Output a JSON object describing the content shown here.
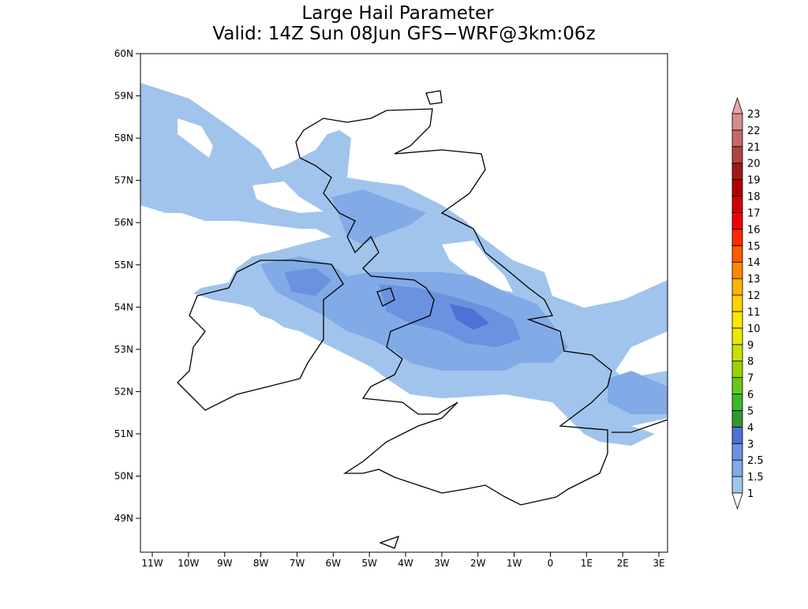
{
  "title": "Large Hail Parameter",
  "subtitle": "Valid: 14Z Sun 08Jun GFS−WRF@3km:06z",
  "map": {
    "lat_labels": [
      "60N",
      "59N",
      "58N",
      "57N",
      "56N",
      "55N",
      "54N",
      "53N",
      "52N",
      "51N",
      "50N",
      "49N"
    ],
    "lon_labels": [
      "11W",
      "10W",
      "9W",
      "8W",
      "7W",
      "6W",
      "5W",
      "4W",
      "3W",
      "2W",
      "1W",
      "0",
      "1E",
      "2E",
      "3E"
    ]
  },
  "legend": {
    "labels": [
      "1",
      "1.5",
      "2.5",
      "3",
      "4",
      "5",
      "6",
      "7",
      "8",
      "9",
      "10",
      "11",
      "12",
      "13",
      "14",
      "15",
      "16",
      "17",
      "18",
      "19",
      "20",
      "21",
      "22",
      "23"
    ],
    "colors": [
      "#a0c4ec",
      "#82aae6",
      "#6a92e0",
      "#4d72d6",
      "#2e9a2e",
      "#3cb82c",
      "#66c81a",
      "#99d400",
      "#c8e000",
      "#e8e800",
      "#ffe800",
      "#ffd200",
      "#ffb400",
      "#ff8a00",
      "#ff5a00",
      "#ff2a00",
      "#f00000",
      "#d00000",
      "#b00000",
      "#a01818",
      "#b04444",
      "#c46a6a",
      "#d48c8c"
    ],
    "above_color": "#e6a8a8",
    "below_color": "#ffffff"
  }
}
